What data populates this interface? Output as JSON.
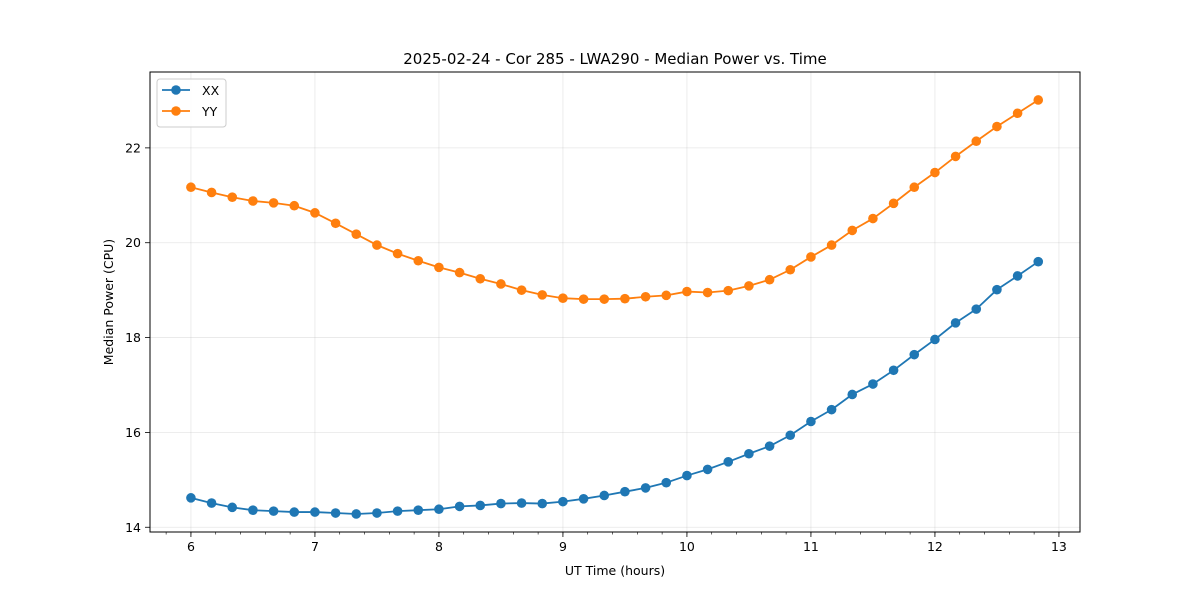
{
  "chart_data": {
    "type": "line",
    "title": "2025-02-24 - Cor 285 - LWA290 - Median Power vs. Time",
    "xlabel": "UT Time (hours)",
    "ylabel": "Median Power (CPU)",
    "xlim": [
      5.67,
      13.17
    ],
    "ylim": [
      13.9,
      23.6
    ],
    "xticks": [
      6,
      7,
      8,
      9,
      10,
      11,
      12,
      13
    ],
    "yticks": [
      14,
      16,
      18,
      20,
      22
    ],
    "grid": true,
    "legend_position": "top-left",
    "x": [
      6.0,
      6.1667,
      6.3333,
      6.5,
      6.6667,
      6.8333,
      7.0,
      7.1667,
      7.3333,
      7.5,
      7.6667,
      7.8333,
      8.0,
      8.1667,
      8.3333,
      8.5,
      8.6667,
      8.8333,
      9.0,
      9.1667,
      9.3333,
      9.5,
      9.6667,
      9.8333,
      10.0,
      10.1667,
      10.3333,
      10.5,
      10.6667,
      10.8333,
      11.0,
      11.1667,
      11.3333,
      11.5,
      11.6667,
      11.8333,
      12.0,
      12.1667,
      12.3333,
      12.5,
      12.6667,
      12.8333
    ],
    "series": [
      {
        "name": "XX",
        "color": "#1f77b4",
        "values": [
          14.62,
          14.51,
          14.42,
          14.36,
          14.34,
          14.32,
          14.32,
          14.3,
          14.28,
          14.3,
          14.34,
          14.36,
          14.38,
          14.44,
          14.46,
          14.5,
          14.51,
          14.5,
          14.54,
          14.6,
          14.67,
          14.75,
          14.83,
          14.94,
          15.09,
          15.22,
          15.38,
          15.55,
          15.71,
          15.94,
          16.23,
          16.48,
          16.8,
          17.02,
          17.31,
          17.64,
          17.96,
          18.31,
          18.6,
          19.01,
          19.3,
          19.6
        ]
      },
      {
        "name": "YY",
        "color": "#ff7f0e",
        "values": [
          21.17,
          21.06,
          20.96,
          20.88,
          20.84,
          20.78,
          20.63,
          20.41,
          20.18,
          19.95,
          19.77,
          19.62,
          19.48,
          19.37,
          19.24,
          19.13,
          19.0,
          18.9,
          18.83,
          18.81,
          18.81,
          18.82,
          18.86,
          18.89,
          18.97,
          18.95,
          18.99,
          19.09,
          19.22,
          19.43,
          19.7,
          19.95,
          20.26,
          20.51,
          20.83,
          21.17,
          21.48,
          21.82,
          22.14,
          22.45,
          22.73,
          23.01
        ]
      }
    ]
  }
}
